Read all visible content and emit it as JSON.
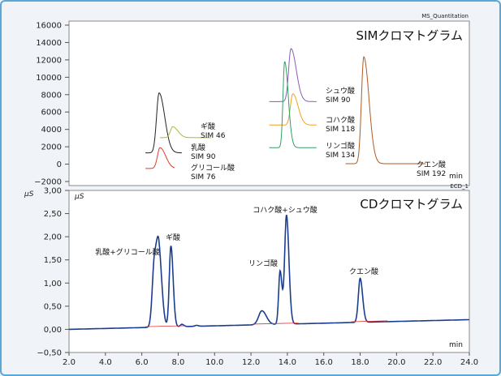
{
  "chart_data": [
    {
      "type": "line",
      "header": "MS_Quantitation",
      "title": "SIMクロマトグラム",
      "xlabel": "min",
      "ylim": [
        -2000,
        16000
      ],
      "yticks": [
        "16000",
        "14000",
        "12000",
        "10000",
        "8000",
        "6000",
        "4000",
        "2000",
        "0",
        "−2000"
      ],
      "annotations": [
        {
          "lines": [
            "ギ酸",
            "SIM 46"
          ]
        },
        {
          "lines": [
            "乳酸",
            "SIM 90"
          ]
        },
        {
          "lines": [
            "グリコール酸",
            "SIM 76"
          ]
        },
        {
          "lines": [
            "シュウ酸",
            "SIM 90"
          ]
        },
        {
          "lines": [
            "コハク酸",
            "SIM 118"
          ]
        },
        {
          "lines": [
            "リンゴ酸",
            "SIM 134"
          ]
        },
        {
          "lines": [
            "クエン酸",
            "SIM 192"
          ]
        }
      ],
      "series": [
        {
          "color": "#222222",
          "peak_time": 6.95,
          "height": 6900,
          "baseline": 1300
        },
        {
          "color": "#e03a2a",
          "peak_time": 7.0,
          "height": 2400,
          "baseline": -500
        },
        {
          "color": "#a8b840",
          "peak_time": 7.7,
          "height": 1250,
          "baseline": 3050
        },
        {
          "color": "#8a5cb8",
          "peak_time": 14.2,
          "height": 6100,
          "baseline": 7200
        },
        {
          "color": "#f0a020",
          "peak_time": 14.3,
          "height": 3600,
          "baseline": 4500
        },
        {
          "color": "#30a060",
          "peak_time": 13.85,
          "height": 9900,
          "baseline": 1900
        },
        {
          "color": "#b05a20",
          "peak_time": 18.2,
          "height": 12300,
          "baseline": 50
        }
      ]
    },
    {
      "type": "line",
      "header": "ECD_1",
      "title": "CDクロマトグラム",
      "ylabel": "μS",
      "xlabel": "min",
      "ylim": [
        -0.5,
        3.0
      ],
      "xlim": [
        2.0,
        24.0
      ],
      "yticks": [
        "3,00",
        "2,50",
        "2,00",
        "1,50",
        "1,00",
        "0,50",
        "0,00",
        "−0,50"
      ],
      "xticks": [
        "2.0",
        "4.0",
        "6.0",
        "8.0",
        "10.0",
        "12.0",
        "14.0",
        "16.0",
        "18.0",
        "20.0",
        "22.0",
        "24.0"
      ],
      "annotations": [
        "乳酸+グリコール酸",
        "ギ酸",
        "コハク酸+シュウ酸",
        "リンゴ酸",
        "クエン酸"
      ],
      "series": [
        {
          "color": "#1a3d8f",
          "peaks": [
            {
              "t": 6.7,
              "h": 1.45
            },
            {
              "t": 6.95,
              "h": 1.4
            },
            {
              "t": 7.6,
              "h": 1.75
            },
            {
              "t": 8.2,
              "h": 0.05
            },
            {
              "t": 9.0,
              "h": 0.02
            },
            {
              "t": 12.6,
              "h": 0.3
            },
            {
              "t": 13.6,
              "h": 1.15
            },
            {
              "t": 13.95,
              "h": 2.35
            },
            {
              "t": 18.0,
              "h": 0.95
            }
          ]
        }
      ]
    }
  ]
}
